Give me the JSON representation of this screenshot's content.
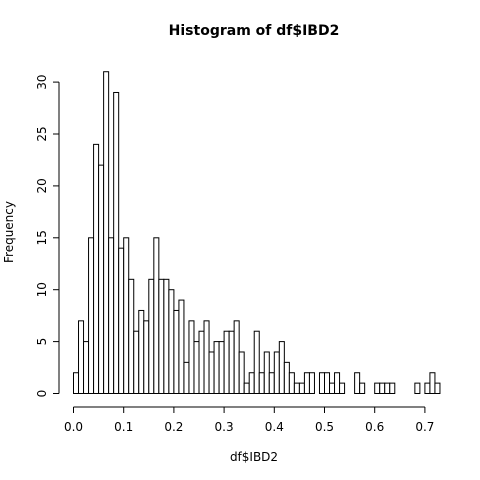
{
  "chart_data": {
    "type": "bar",
    "title": "Histogram of df$IBD2",
    "xlabel": "df$IBD2",
    "ylabel": "Frequency",
    "bin_width": 0.01,
    "bin_start": 0.0,
    "values": [
      2,
      7,
      5,
      15,
      24,
      22,
      31,
      15,
      29,
      14,
      15,
      11,
      6,
      8,
      7,
      11,
      15,
      11,
      11,
      10,
      8,
      9,
      3,
      7,
      5,
      6,
      7,
      4,
      5,
      5,
      6,
      6,
      7,
      4,
      1,
      2,
      6,
      2,
      4,
      2,
      4,
      5,
      3,
      2,
      1,
      1,
      2,
      2,
      0,
      2,
      2,
      1,
      2,
      1,
      0,
      0,
      2,
      1,
      0,
      0,
      1,
      1,
      1,
      1,
      0,
      0,
      0,
      0,
      1,
      0,
      1,
      2,
      1
    ],
    "xlim": [
      0.0,
      0.72
    ],
    "ylim": [
      0,
      31
    ],
    "xticks": [
      "0.0",
      "0.1",
      "0.2",
      "0.3",
      "0.4",
      "0.5",
      "0.6",
      "0.7"
    ],
    "yticks": [
      "0",
      "5",
      "10",
      "15",
      "20",
      "25",
      "30"
    ],
    "grid": false,
    "legend": "none",
    "colors": {
      "bar_fill": "#ffffff",
      "bar_stroke": "#000000"
    }
  }
}
